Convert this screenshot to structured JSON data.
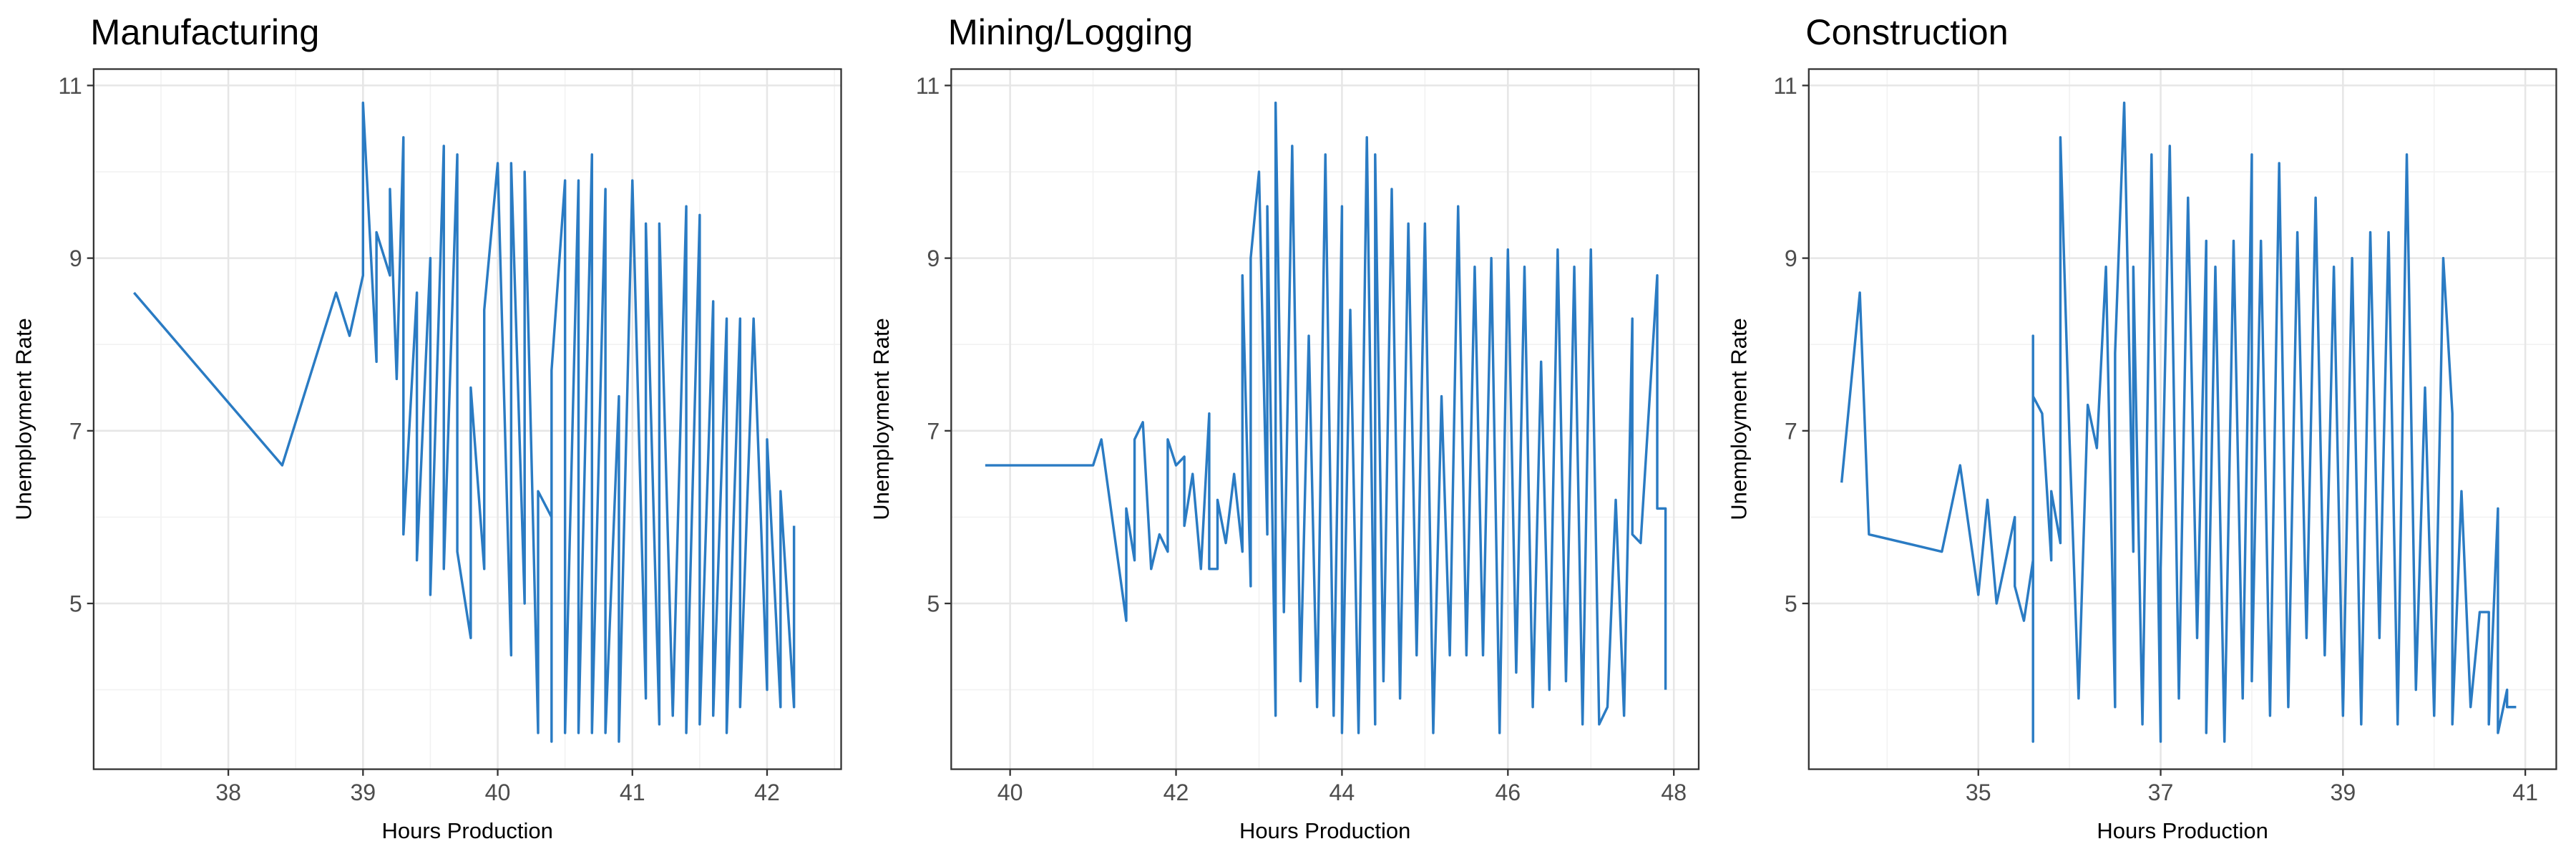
{
  "chart_data": [
    {
      "type": "line",
      "title": "Manufacturing",
      "xlabel": "Hours Production",
      "ylabel": "Unemployment Rate",
      "color": "#2a7bc3",
      "grid": true,
      "xlim": [
        37.0,
        42.55
      ],
      "ylim": [
        3.08,
        11.19
      ],
      "xticks": [
        38,
        39,
        40,
        41,
        42
      ],
      "yticks": [
        5,
        7,
        9,
        11
      ],
      "x": [
        37.3,
        38.4,
        38.8,
        38.9,
        39.0,
        39.0,
        39.1,
        39.1,
        39.2,
        39.2,
        39.25,
        39.3,
        39.3,
        39.4,
        39.4,
        39.5,
        39.5,
        39.6,
        39.6,
        39.7,
        39.7,
        39.8,
        39.8,
        39.9,
        39.9,
        40.0,
        40.1,
        40.1,
        40.2,
        40.2,
        40.3,
        40.3,
        40.4,
        40.4,
        40.4,
        40.5,
        40.5,
        40.6,
        40.6,
        40.7,
        40.7,
        40.8,
        40.8,
        40.9,
        40.9,
        41.0,
        41.1,
        41.1,
        41.2,
        41.2,
        41.3,
        41.4,
        41.4,
        41.5,
        41.5,
        41.6,
        41.6,
        41.7,
        41.7,
        41.8,
        41.8,
        41.9,
        42.0,
        42.0,
        42.1,
        42.1,
        42.2,
        42.2
      ],
      "values": [
        8.6,
        6.6,
        8.6,
        8.1,
        8.8,
        10.8,
        7.8,
        9.3,
        8.8,
        9.8,
        7.6,
        10.4,
        5.8,
        8.6,
        5.5,
        9.0,
        5.1,
        10.3,
        5.4,
        10.2,
        5.6,
        4.6,
        7.5,
        5.4,
        8.4,
        10.1,
        4.4,
        10.1,
        5.0,
        10.0,
        3.5,
        6.3,
        6.0,
        3.4,
        7.7,
        9.9,
        3.5,
        9.9,
        3.5,
        10.2,
        3.5,
        9.8,
        3.5,
        7.4,
        3.4,
        9.9,
        3.9,
        9.4,
        3.6,
        9.4,
        3.7,
        9.6,
        3.5,
        9.5,
        3.6,
        8.5,
        3.7,
        8.3,
        3.5,
        8.3,
        3.8,
        8.3,
        4.0,
        6.9,
        3.8,
        6.3,
        3.8,
        5.9
      ]
    },
    {
      "type": "line",
      "title": "Mining/Logging",
      "xlabel": "Hours Production",
      "ylabel": "Unemployment Rate",
      "color": "#2a7bc3",
      "grid": true,
      "xlim": [
        39.29,
        48.3
      ],
      "ylim": [
        3.08,
        11.19
      ],
      "xticks": [
        40,
        42,
        44,
        46,
        48
      ],
      "yticks": [
        5,
        7,
        9,
        11
      ],
      "x": [
        39.7,
        41.0,
        41.1,
        41.4,
        41.4,
        41.5,
        41.5,
        41.6,
        41.7,
        41.8,
        41.9,
        41.9,
        42.0,
        42.1,
        42.1,
        42.2,
        42.3,
        42.4,
        42.4,
        42.5,
        42.5,
        42.6,
        42.7,
        42.8,
        42.8,
        42.9,
        42.9,
        43.0,
        43.1,
        43.1,
        43.2,
        43.2,
        43.3,
        43.4,
        43.5,
        43.6,
        43.7,
        43.8,
        43.9,
        44.0,
        44.0,
        44.1,
        44.2,
        44.3,
        44.4,
        44.4,
        44.5,
        44.6,
        44.7,
        44.8,
        44.9,
        45.0,
        45.1,
        45.2,
        45.3,
        45.4,
        45.5,
        45.6,
        45.7,
        45.8,
        45.9,
        46.0,
        46.1,
        46.2,
        46.3,
        46.4,
        46.5,
        46.6,
        46.7,
        46.8,
        46.9,
        47.0,
        47.1,
        47.2,
        47.3,
        47.4,
        47.5,
        47.5,
        47.6,
        47.8,
        47.8,
        47.9,
        47.9
      ],
      "values": [
        6.6,
        6.6,
        6.9,
        4.8,
        6.1,
        5.5,
        6.9,
        7.1,
        5.4,
        5.8,
        5.6,
        6.9,
        6.6,
        6.7,
        5.9,
        6.5,
        5.4,
        7.2,
        5.4,
        5.4,
        6.2,
        5.7,
        6.5,
        5.6,
        8.8,
        5.2,
        9.0,
        10.0,
        5.8,
        9.6,
        3.7,
        10.8,
        4.9,
        10.3,
        4.1,
        8.1,
        3.8,
        10.2,
        3.7,
        9.6,
        3.5,
        8.4,
        3.5,
        10.4,
        3.6,
        10.2,
        4.1,
        9.8,
        3.9,
        9.4,
        4.4,
        9.4,
        3.5,
        7.4,
        4.4,
        9.6,
        4.4,
        8.9,
        4.4,
        9.0,
        3.5,
        9.1,
        4.2,
        8.9,
        3.8,
        7.8,
        4.0,
        9.1,
        4.1,
        8.9,
        3.6,
        9.1,
        3.6,
        3.8,
        6.2,
        3.7,
        8.3,
        5.8,
        5.7,
        8.8,
        6.1,
        6.1,
        4.0
      ]
    },
    {
      "type": "line",
      "title": "Construction",
      "xlabel": "Hours Production",
      "ylabel": "Unemployment Rate",
      "color": "#2a7bc3",
      "grid": true,
      "xlim": [
        33.14,
        41.34
      ],
      "ylim": [
        3.08,
        11.19
      ],
      "xticks": [
        35,
        37,
        39,
        41
      ],
      "yticks": [
        5,
        7,
        9,
        11
      ],
      "x": [
        33.5,
        33.7,
        33.8,
        34.6,
        34.8,
        35.0,
        35.1,
        35.2,
        35.4,
        35.4,
        35.5,
        35.6,
        35.6,
        35.6,
        35.6,
        35.7,
        35.8,
        35.8,
        35.9,
        35.9,
        36.0,
        36.1,
        36.2,
        36.3,
        36.4,
        36.5,
        36.5,
        36.6,
        36.7,
        36.7,
        36.8,
        36.9,
        37.0,
        37.0,
        37.1,
        37.2,
        37.3,
        37.4,
        37.5,
        37.5,
        37.6,
        37.7,
        37.8,
        37.9,
        38.0,
        38.0,
        38.1,
        38.2,
        38.3,
        38.4,
        38.5,
        38.6,
        38.7,
        38.8,
        38.9,
        39.0,
        39.1,
        39.2,
        39.3,
        39.4,
        39.5,
        39.6,
        39.7,
        39.8,
        39.9,
        40.0,
        40.1,
        40.2,
        40.2,
        40.3,
        40.4,
        40.5,
        40.6,
        40.6,
        40.7,
        40.7,
        40.8,
        40.8,
        40.9
      ],
      "values": [
        6.4,
        8.6,
        5.8,
        5.6,
        6.6,
        5.1,
        6.2,
        5.0,
        6.0,
        5.2,
        4.8,
        5.5,
        8.1,
        3.4,
        7.4,
        7.2,
        5.5,
        6.3,
        5.7,
        10.4,
        6.9,
        3.9,
        7.3,
        6.8,
        8.9,
        3.8,
        7.9,
        10.8,
        5.6,
        8.9,
        3.6,
        10.2,
        3.4,
        5.4,
        10.3,
        3.9,
        9.7,
        4.6,
        9.2,
        3.5,
        8.9,
        3.4,
        9.2,
        3.9,
        10.2,
        4.1,
        9.2,
        3.7,
        10.1,
        3.8,
        9.3,
        4.6,
        9.7,
        4.4,
        8.9,
        3.7,
        9.0,
        3.6,
        9.3,
        4.6,
        9.3,
        3.6,
        10.2,
        4.0,
        7.5,
        3.7,
        9.0,
        7.2,
        3.6,
        6.3,
        3.8,
        4.9,
        4.9,
        3.6,
        6.1,
        3.5,
        4.0,
        3.8,
        3.8
      ]
    }
  ]
}
